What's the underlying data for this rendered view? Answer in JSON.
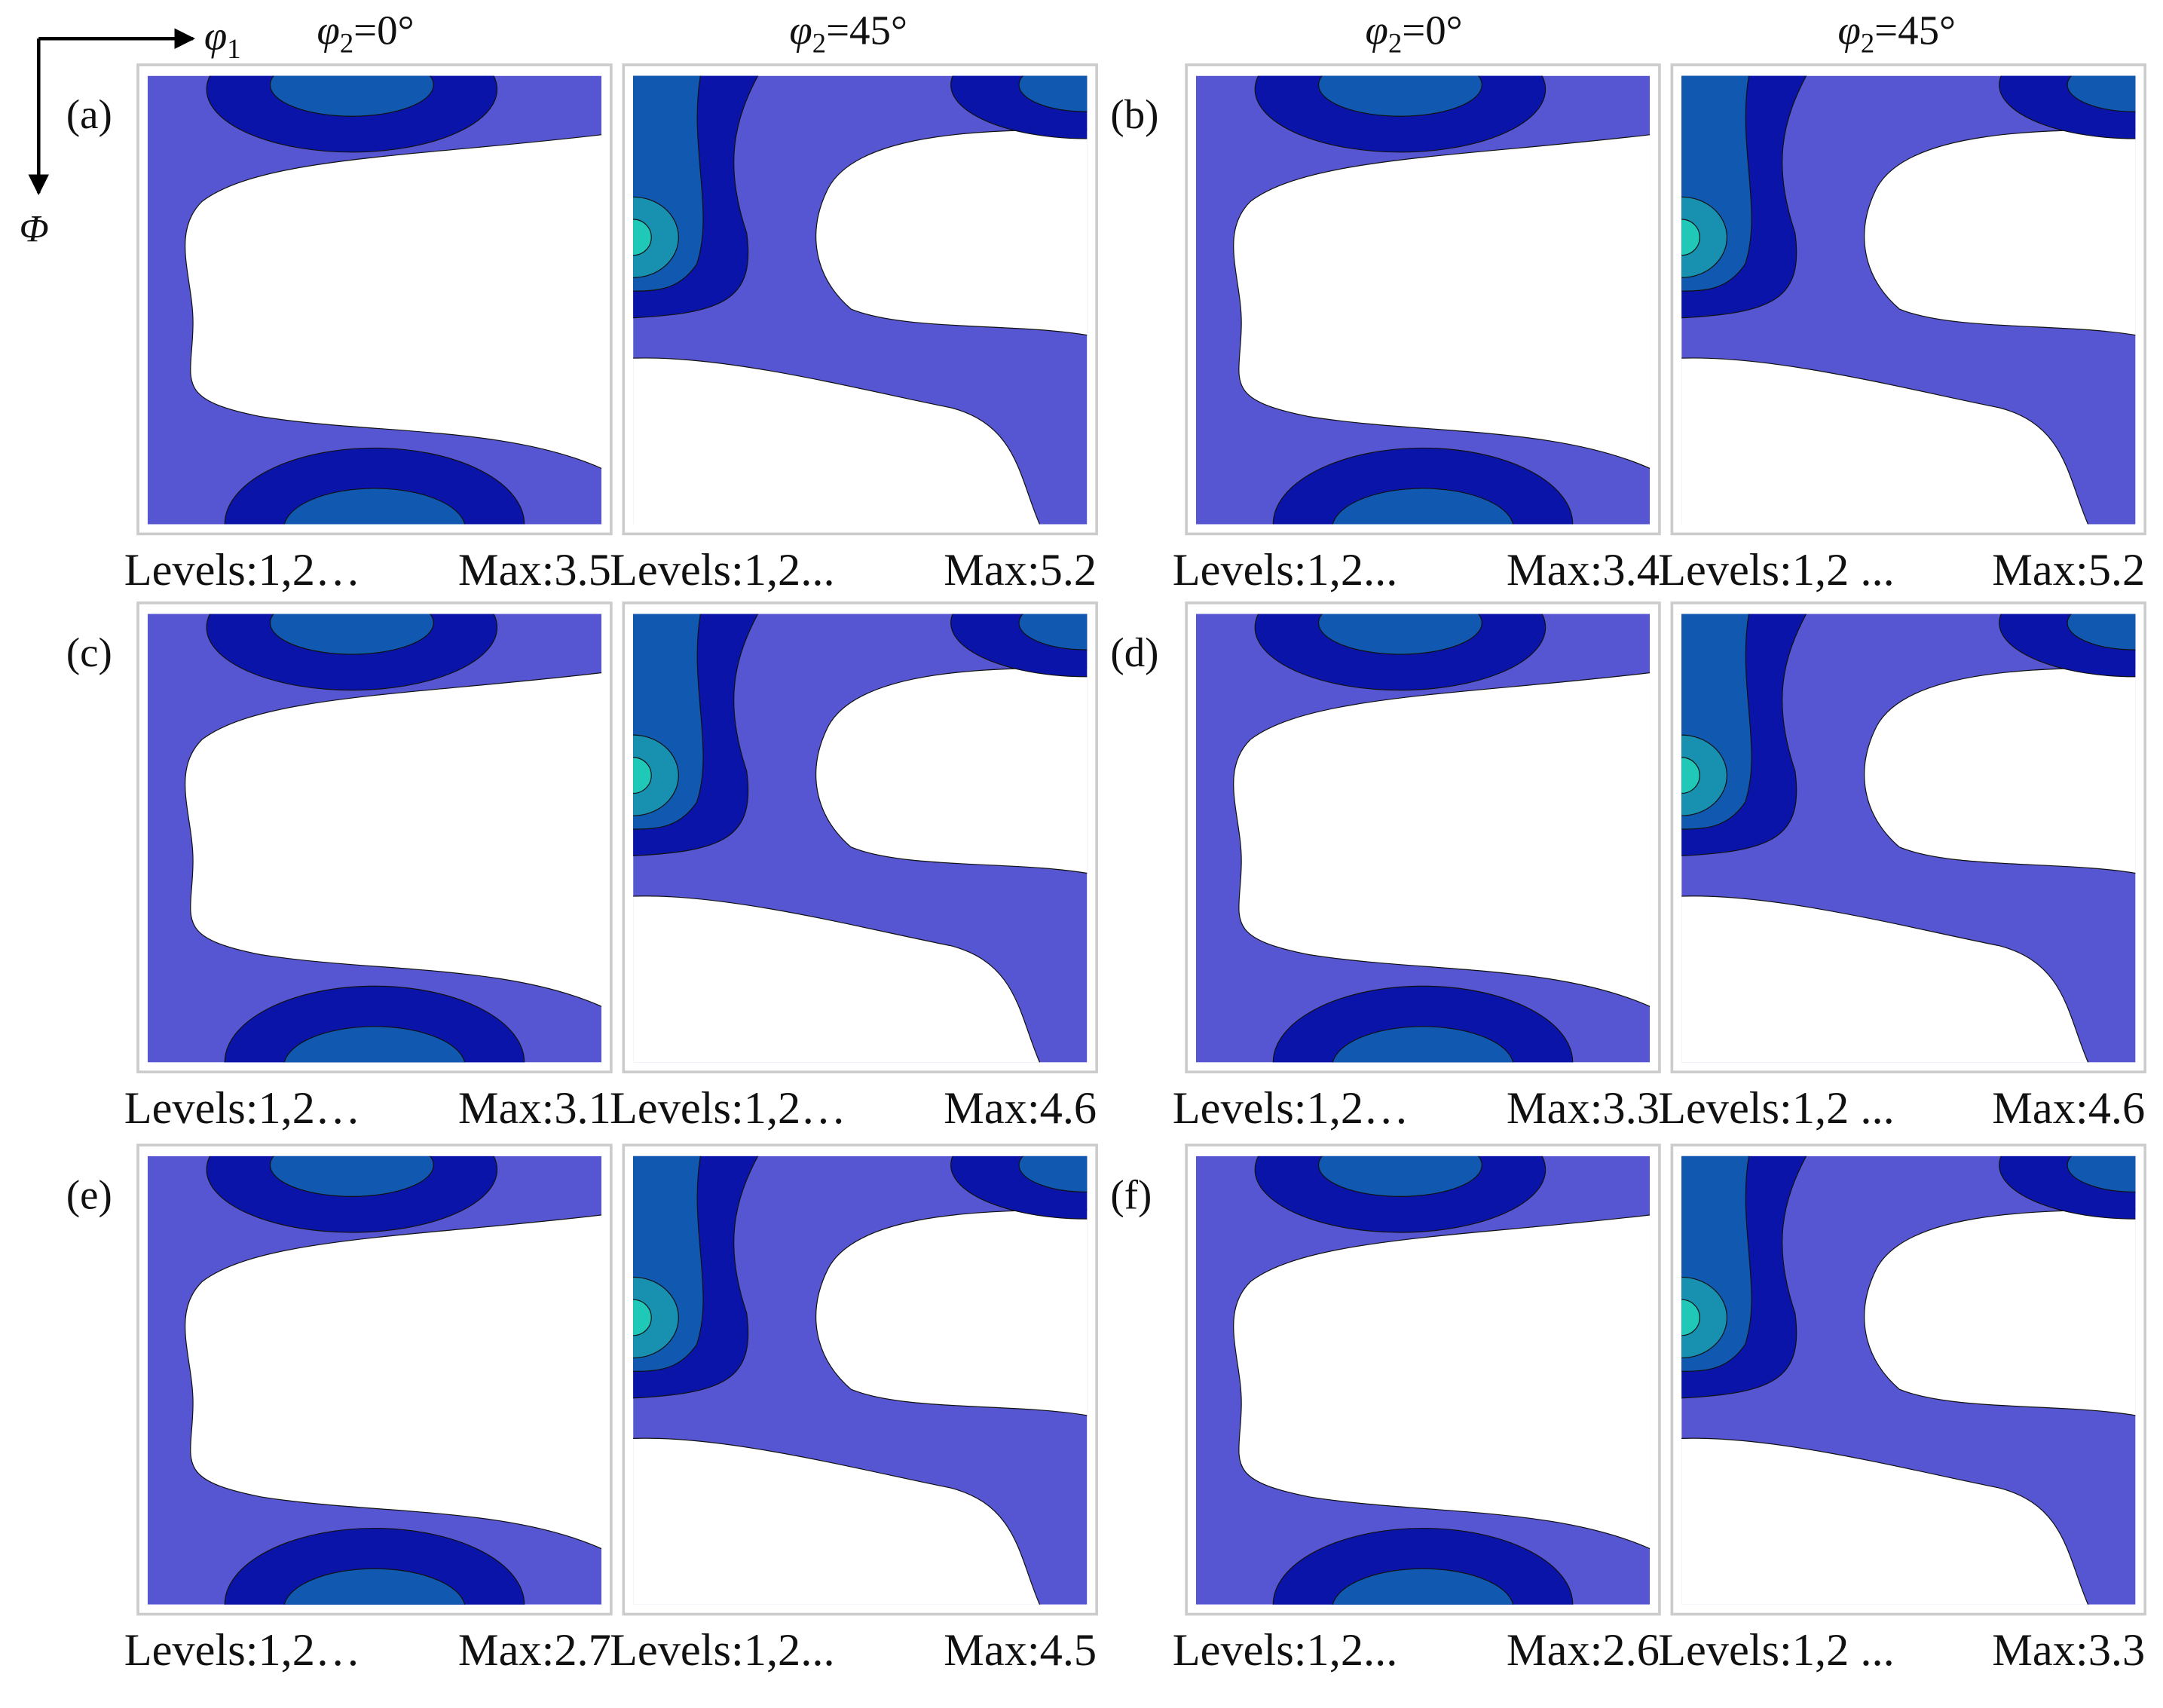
{
  "axes": {
    "phi1": {
      "symbol": "φ",
      "subscript": "1"
    },
    "Phi": "Φ"
  },
  "column_titles": [
    {
      "symbol": "φ",
      "subscript": "2",
      "text": "=0°"
    },
    {
      "symbol": "φ",
      "subscript": "2",
      "text": "=45°"
    },
    {
      "symbol": "φ",
      "subscript": "2",
      "text": "=0°"
    },
    {
      "symbol": "φ",
      "subscript": "2",
      "text": "=45°"
    }
  ],
  "panels": [
    {
      "label": "(a)",
      "plots": [
        {
          "levels": "Levels:1,2…",
          "max": "Max:3.5"
        },
        {
          "levels": "Levels:1,2...",
          "max": "Max:5.2"
        }
      ]
    },
    {
      "label": "(b)",
      "plots": [
        {
          "levels": "Levels:1,2...",
          "max": "Max:3.4"
        },
        {
          "levels": "Levels:1,2 ...",
          "max": "Max:5.2"
        }
      ]
    },
    {
      "label": "(c)",
      "plots": [
        {
          "levels": "Levels:1,2…",
          "max": "Max:3.1"
        },
        {
          "levels": "Levels:1,2…",
          "max": "Max:4.6"
        }
      ]
    },
    {
      "label": "(d)",
      "plots": [
        {
          "levels": "Levels:1,2…",
          "max": "Max:3.3"
        },
        {
          "levels": "Levels:1,2 ...",
          "max": "Max:4.6"
        }
      ]
    },
    {
      "label": "(e)",
      "plots": [
        {
          "levels": "Levels:1,2…",
          "max": "Max:2.7"
        },
        {
          "levels": "Levels:1,2...",
          "max": "Max:4.5"
        }
      ]
    },
    {
      "label": "(f)",
      "plots": [
        {
          "levels": "Levels:1,2...",
          "max": "Max:2.6"
        },
        {
          "levels": "Levels:1,2 ...",
          "max": "Max:3.3"
        }
      ]
    }
  ]
}
